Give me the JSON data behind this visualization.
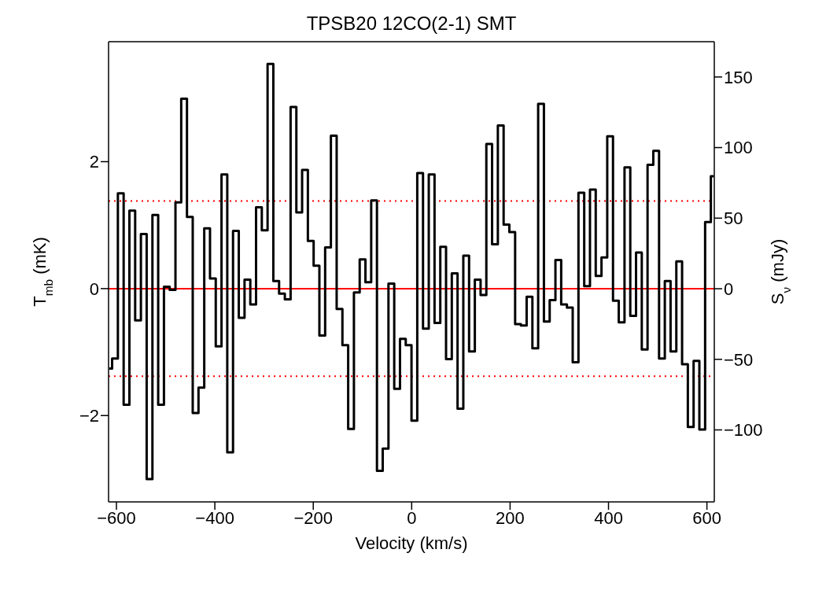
{
  "chart_data": {
    "type": "step",
    "title": "TPSB20 12CO(2-1) SMT",
    "xlabel": "Velocity (km/s)",
    "ylabel": "T$_{mb}$ (mK)",
    "y2label": "S$_{ν}$ (mJy)",
    "x": [
      -614.6,
      -602.9,
      -591.2,
      -579.5,
      -567.8,
      -556.1,
      -544.4,
      -532.7,
      -521.0,
      -509.3,
      -497.6,
      -485.9,
      -474.2,
      -462.5,
      -450.8,
      -439.1,
      -427.4,
      -415.7,
      -404.0,
      -392.3,
      -380.6,
      -368.9,
      -357.2,
      -345.5,
      -333.8,
      -322.1,
      -310.4,
      -298.7,
      -287.0,
      -275.3,
      -263.6,
      -251.9,
      -240.2,
      -228.5,
      -216.8,
      -205.1,
      -193.4,
      -181.7,
      -170.0,
      -158.3,
      -146.6,
      -134.9,
      -123.2,
      -111.5,
      -99.8,
      -88.1,
      -76.4,
      -64.7,
      -53.0,
      -41.3,
      -29.6,
      -17.9,
      -6.2,
      5.5,
      17.2,
      28.9,
      40.6,
      52.3,
      64.0,
      75.7,
      87.4,
      99.1,
      110.8,
      122.5,
      134.2,
      145.9,
      157.6,
      169.3,
      181.0,
      192.7,
      204.4,
      216.1,
      227.8,
      239.5,
      251.2,
      262.9,
      274.6,
      286.3,
      298.0,
      309.7,
      321.4,
      333.1,
      344.8,
      356.5,
      368.2,
      379.9,
      391.6,
      403.3,
      415.0,
      426.7,
      438.4,
      450.1,
      461.8,
      473.5,
      485.2,
      496.9,
      508.6,
      520.3,
      532.0,
      543.7,
      555.4,
      567.1,
      578.8,
      590.5,
      602.2,
      613.9
    ],
    "series": [
      {
        "color": "#000000",
        "values": [
          -1.26,
          -1.1,
          1.5,
          -1.83,
          1.23,
          -0.5,
          0.86,
          -3.0,
          1.16,
          -1.83,
          0.03,
          -0.02,
          1.36,
          2.99,
          1.13,
          -1.96,
          -1.56,
          0.95,
          0.16,
          -0.91,
          1.8,
          -2.58,
          0.91,
          -0.46,
          0.14,
          -0.25,
          1.28,
          0.92,
          3.54,
          0.12,
          -0.08,
          -0.17,
          2.86,
          1.2,
          1.87,
          0.75,
          0.36,
          -0.74,
          0.65,
          2.41,
          -0.32,
          -0.89,
          -2.21,
          -0.06,
          0.46,
          0.1,
          1.39,
          -2.87,
          -2.52,
          0.08,
          -1.58,
          -0.79,
          -0.89,
          -2.08,
          1.82,
          -0.63,
          1.8,
          -0.54,
          0.66,
          -1.11,
          0.24,
          -1.89,
          0.52,
          -0.99,
          0.14,
          -0.1,
          2.28,
          0.7,
          2.57,
          1.01,
          0.89,
          -0.56,
          -0.58,
          -0.13,
          -0.94,
          2.91,
          -0.52,
          -0.18,
          0.45,
          -0.25,
          -0.3,
          -1.16,
          1.51,
          0.04,
          1.56,
          0.2,
          0.49,
          2.4,
          -0.19,
          -0.53,
          1.91,
          -0.43,
          0.57,
          -0.96,
          1.95,
          2.17,
          -1.1,
          0.12,
          -0.99,
          0.43,
          -1.19,
          -2.18,
          -1.14,
          -2.22,
          1.05,
          1.77
        ]
      }
    ],
    "xlim": [
      -616,
      615
    ],
    "xticks": [
      -600,
      -400,
      -200,
      0,
      200,
      400,
      600
    ],
    "ylim": [
      -3.36,
      3.89
    ],
    "yticks": [
      -2,
      0,
      2
    ],
    "y2lim": [
      -151,
      175
    ],
    "y2ticks": [
      -100,
      -50,
      0,
      50,
      100,
      150
    ],
    "ref_lines": [
      {
        "axis": "y",
        "value": 0,
        "color": "#ff0000",
        "line_style": "solid"
      },
      {
        "axis": "y",
        "value": 1.38,
        "color": "#ff0000",
        "line_style": "dotted"
      },
      {
        "axis": "y",
        "value": -1.38,
        "color": "#ff0000",
        "line_style": "dotted"
      }
    ],
    "grid": false,
    "legend": false,
    "marker": "none",
    "line_style": "solid"
  }
}
